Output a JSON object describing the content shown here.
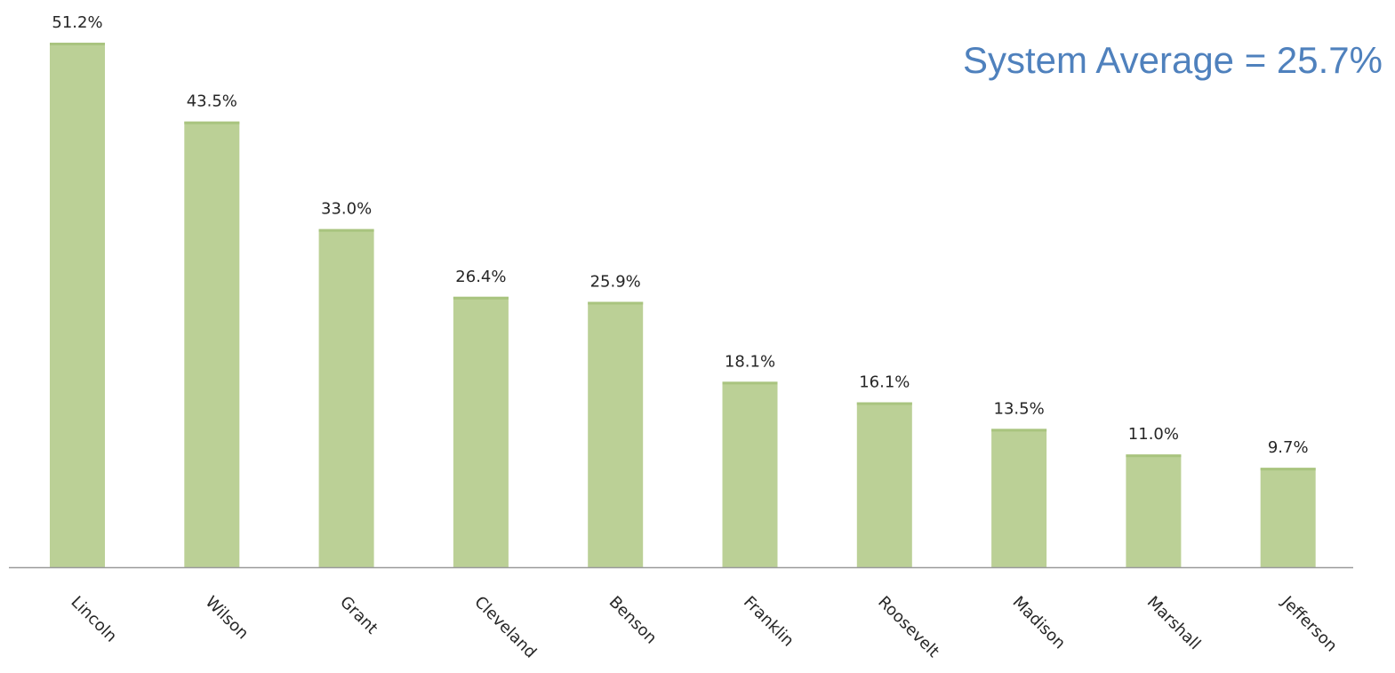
{
  "colors": {
    "bar": "#bbd096",
    "bar_edge": "#a9c47f",
    "axis": "#9a9a9a",
    "label_text": "#262626",
    "annotation": "#4f81bd"
  },
  "chart_data": {
    "type": "bar",
    "categories": [
      "Lincoln",
      "Wilson",
      "Grant",
      "Cleveland",
      "Benson",
      "Franklin",
      "Roosevelt",
      "Madison",
      "Marshall",
      "Jefferson"
    ],
    "values": [
      51.2,
      43.5,
      33.0,
      26.4,
      25.9,
      18.1,
      16.1,
      13.5,
      11.0,
      9.7
    ],
    "data_labels": [
      "51.2%",
      "43.5%",
      "33.0%",
      "26.4%",
      "25.9%",
      "18.1%",
      "16.1%",
      "13.5%",
      "11.0%",
      "9.7%"
    ],
    "annotation": "System Average = 25.7%",
    "ylim": [
      0,
      51.2
    ],
    "grid": false,
    "legend": "none"
  }
}
